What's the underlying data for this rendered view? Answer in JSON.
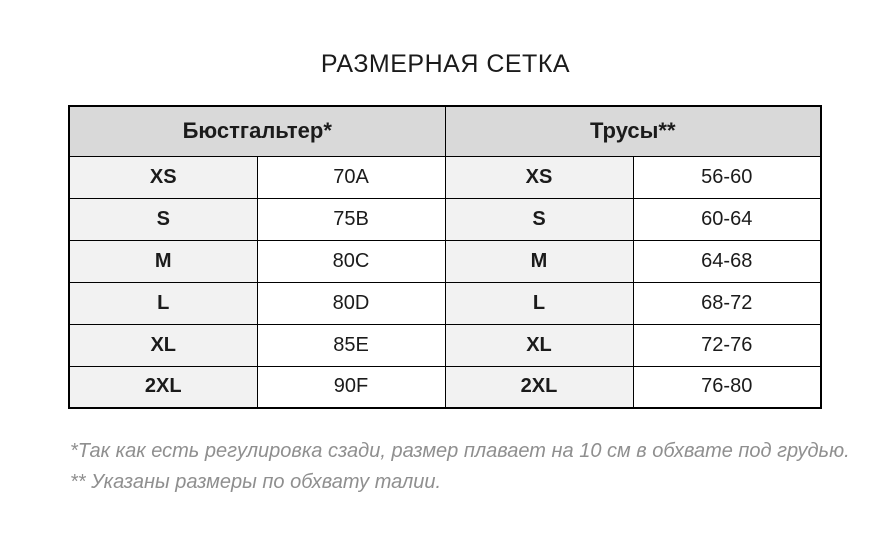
{
  "page": {
    "title": "РАЗМЕРНАЯ СЕТКА"
  },
  "table": {
    "group_headers": [
      {
        "label": "Бюстгальтер*"
      },
      {
        "label": "Трусы**"
      }
    ],
    "rows": [
      {
        "bra_size": "XS",
        "bra_value": "70A",
        "panty_size": "XS",
        "panty_value": "56-60"
      },
      {
        "bra_size": "S",
        "bra_value": "75B",
        "panty_size": "S",
        "panty_value": "60-64"
      },
      {
        "bra_size": "M",
        "bra_value": "80C",
        "panty_size": "M",
        "panty_value": "64-68"
      },
      {
        "bra_size": "L",
        "bra_value": "80D",
        "panty_size": "L",
        "panty_value": "68-72"
      },
      {
        "bra_size": "XL",
        "bra_value": "85E",
        "panty_size": "XL",
        "panty_value": "72-76"
      },
      {
        "bra_size": "2XL",
        "bra_value": "90F",
        "panty_size": "2XL",
        "panty_value": "76-80"
      }
    ]
  },
  "footnotes": [
    "*Так как есть регулировка сзади, размер плавает на 10 см в обхвате под грудью.",
    "** Указаны размеры по обхвату талии."
  ],
  "colors": {
    "group_header_bg": "#d9d9d9",
    "size_cell_bg": "#f2f2f2",
    "border": "#000000",
    "footnote_text": "#8f8f8f"
  }
}
